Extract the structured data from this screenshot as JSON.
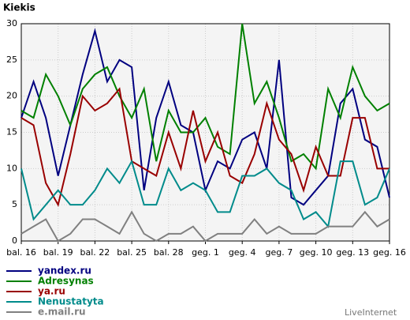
{
  "chart_data": {
    "type": "line",
    "title": "Kiekis",
    "source": "LiveInternet",
    "categories": [
      "bal. 16",
      null,
      null,
      "bal. 19",
      null,
      null,
      "bal. 22",
      null,
      null,
      "bal. 25",
      null,
      null,
      "bal. 28",
      null,
      null,
      "geg. 1",
      null,
      null,
      "geg. 4",
      null,
      null,
      "geg. 7",
      null,
      null,
      "geg. 10",
      null,
      null,
      "geg. 13",
      null,
      null,
      "geg. 16"
    ],
    "series": [
      {
        "name": "yandex.ru",
        "color": "#000080",
        "values": [
          17,
          22,
          17,
          9,
          16,
          23,
          29,
          22,
          25,
          24,
          7,
          17,
          22,
          16,
          15,
          7,
          11,
          10,
          14,
          15,
          10,
          25,
          6,
          5,
          7,
          9,
          19,
          21,
          14,
          13,
          6
        ]
      },
      {
        "name": "Adresynas",
        "color": "#008000",
        "values": [
          18,
          17,
          23,
          20,
          16,
          21,
          23,
          24,
          20,
          17,
          21,
          11,
          18,
          15,
          15,
          17,
          13,
          12,
          30,
          19,
          22,
          17,
          11,
          12,
          10,
          21,
          17,
          24,
          20,
          18,
          19
        ]
      },
      {
        "name": "ya.ru",
        "color": "#990000",
        "values": [
          17,
          16,
          8,
          5,
          12,
          20,
          18,
          19,
          21,
          11,
          10,
          9,
          15,
          10,
          18,
          11,
          15,
          9,
          8,
          12,
          19,
          14,
          12,
          7,
          13,
          9,
          9,
          17,
          17,
          10,
          10
        ]
      },
      {
        "name": "Nenustatyta",
        "color": "#008b8b",
        "values": [
          10,
          3,
          5,
          7,
          5,
          5,
          7,
          10,
          8,
          11,
          5,
          5,
          10,
          7,
          8,
          7,
          4,
          4,
          9,
          9,
          10,
          8,
          7,
          3,
          4,
          2,
          11,
          11,
          5,
          6,
          10
        ]
      },
      {
        "name": "e.mail.ru",
        "color": "#808080",
        "values": [
          1,
          2,
          3,
          0,
          1,
          3,
          3,
          2,
          1,
          4,
          1,
          0,
          1,
          1,
          2,
          0,
          1,
          1,
          1,
          3,
          1,
          2,
          1,
          1,
          1,
          2,
          2,
          2,
          4,
          2,
          3
        ]
      }
    ],
    "ylim": [
      0,
      30
    ],
    "yticks": [
      0,
      5,
      10,
      15,
      20,
      25,
      30
    ],
    "grid": true
  }
}
